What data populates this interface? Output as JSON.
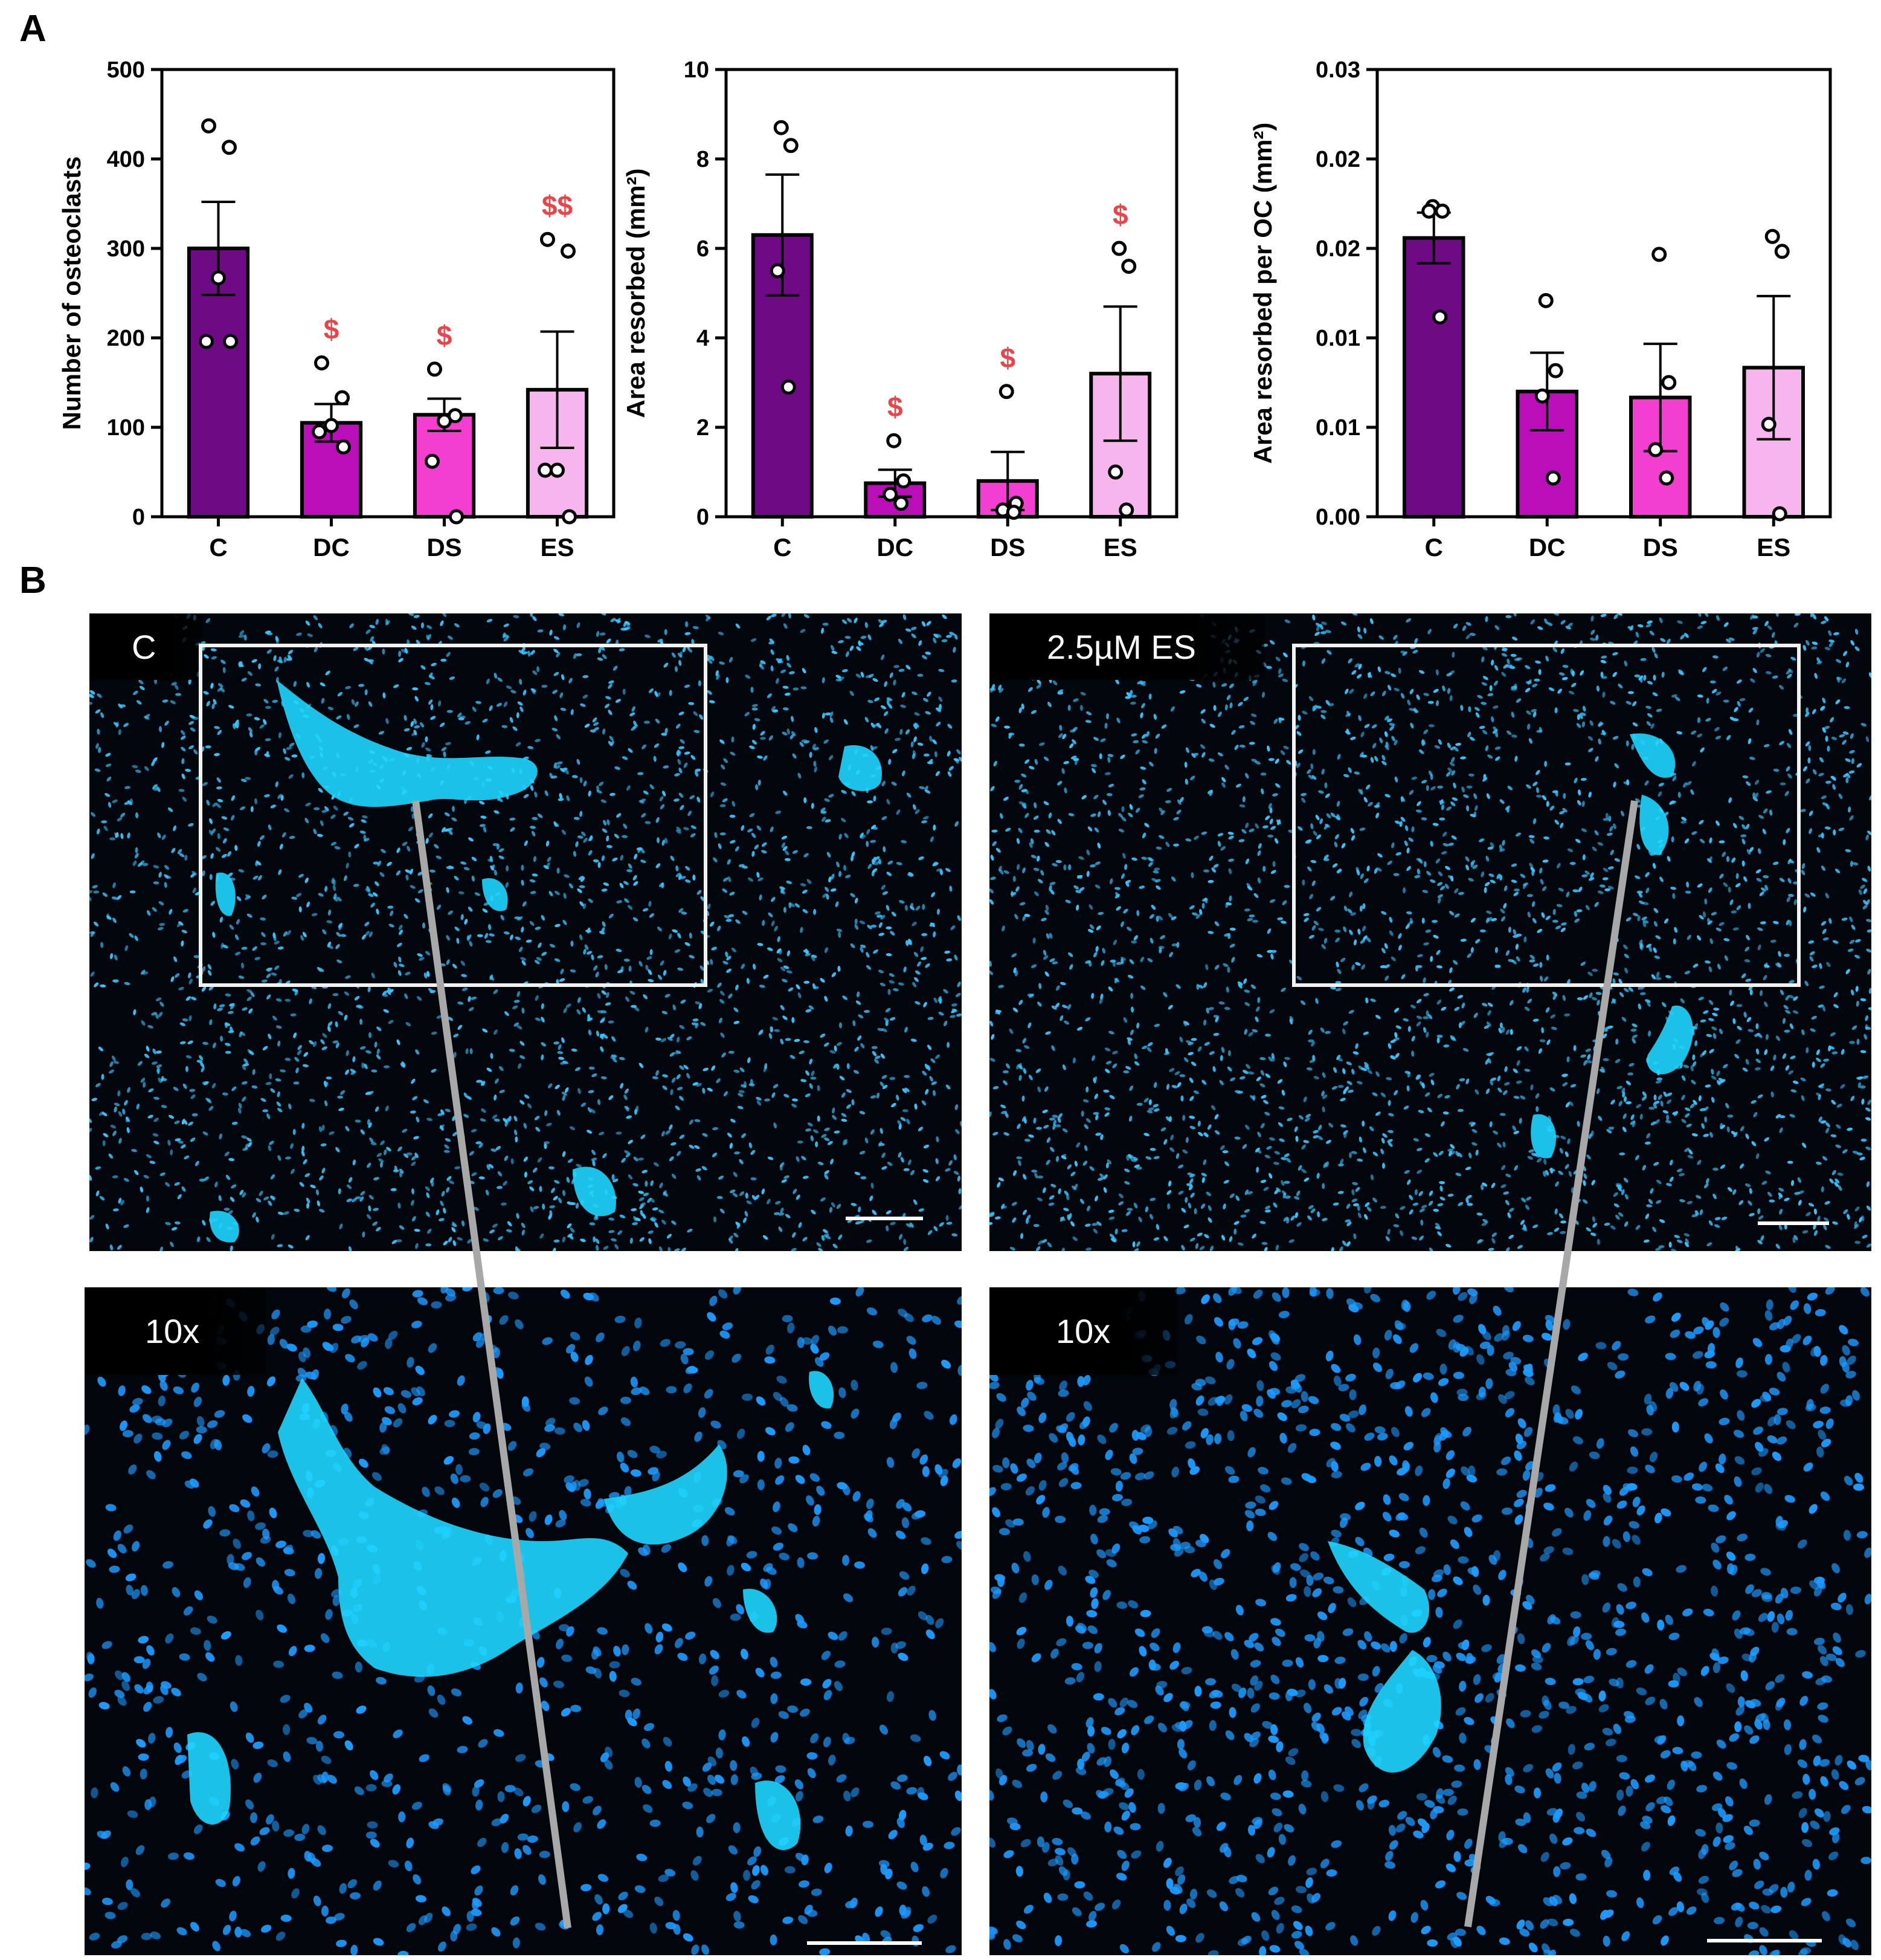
{
  "panels": {
    "a": "A",
    "b": "B"
  },
  "colors": {
    "C": "#6e0b84",
    "DC": "#ba0fb8",
    "DS": "#f23fd0",
    "ES": "#f6b5ec",
    "sig": "#e8454a",
    "cell": "#37c5ff",
    "clump": "#1fd6ff"
  },
  "chart_data": [
    {
      "type": "bar",
      "categories": [
        "C",
        "DC",
        "DS",
        "ES"
      ],
      "values": [
        300,
        105,
        114,
        142
      ],
      "errors": [
        52,
        21,
        18,
        65
      ],
      "points": [
        [
          437,
          413,
          267,
          196,
          196
        ],
        [
          172,
          133,
          102,
          95,
          78
        ],
        [
          165,
          113,
          107,
          62,
          0
        ],
        [
          310,
          297,
          52,
          52,
          0
        ]
      ],
      "significance": [
        "",
        "$",
        "$",
        "$$"
      ],
      "ylabel": "Number of osteoclasts",
      "ylim": [
        0,
        500
      ],
      "yticks": [
        "0",
        "100",
        "200",
        "300",
        "400",
        "500"
      ]
    },
    {
      "type": "bar",
      "categories": [
        "C",
        "DC",
        "DS",
        "ES"
      ],
      "values": [
        6.3,
        0.75,
        0.8,
        3.2
      ],
      "errors": [
        1.35,
        0.3,
        0.65,
        1.5
      ],
      "points": [
        [
          8.7,
          8.3,
          5.5,
          2.9
        ],
        [
          1.7,
          0.8,
          0.5,
          0.3
        ],
        [
          2.8,
          0.3,
          0.15,
          0.1
        ],
        [
          6.0,
          5.6,
          1.0,
          0.15
        ]
      ],
      "significance": [
        "",
        "$",
        "$",
        "$"
      ],
      "ylabel": "Area resorbed (mm²)",
      "ylim": [
        0,
        10
      ],
      "yticks": [
        "0",
        "2",
        "4",
        "6",
        "8",
        "10"
      ]
    },
    {
      "type": "bar",
      "categories": [
        "C",
        "DC",
        "DS",
        "ES"
      ],
      "values": [
        0.0187,
        0.0084,
        0.008,
        0.01
      ],
      "errors": [
        0.0017,
        0.0026,
        0.0036,
        0.0048
      ],
      "points": [
        [
          0.0208,
          0.0205,
          0.0205,
          0.0134
        ],
        [
          0.0145,
          0.0098,
          0.0081,
          0.0026
        ],
        [
          0.0176,
          0.009,
          0.0045,
          0.0026
        ],
        [
          0.0188,
          0.0178,
          0.0062,
          0.0002
        ]
      ],
      "significance": [
        "",
        "",
        "",
        ""
      ],
      "ylabel": "Area resorbed per OC (mm²)",
      "ylim": [
        0,
        0.03
      ],
      "yticks": [
        "0.00",
        "0.01",
        "0.01",
        "0.02",
        "0.02",
        "0.03"
      ]
    }
  ],
  "micrographs": {
    "top_left_label": "C",
    "top_right_label": "2.5µM ES",
    "bottom_left_label": "10x",
    "bottom_right_label": "10x"
  }
}
